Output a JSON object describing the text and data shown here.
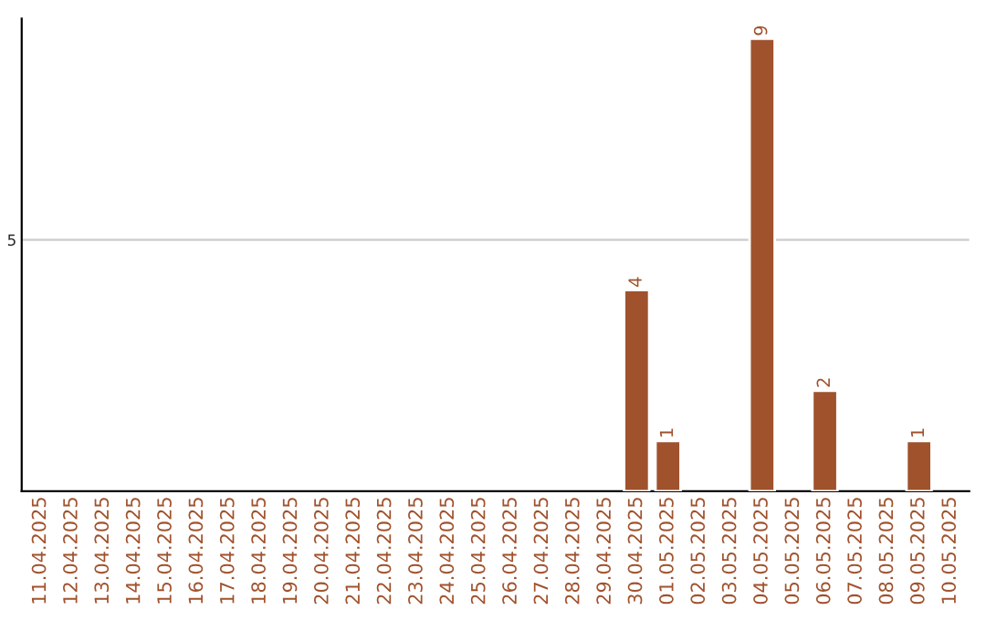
{
  "chart_data": {
    "type": "bar",
    "categories": [
      "11.04.2025",
      "12.04.2025",
      "13.04.2025",
      "14.04.2025",
      "15.04.2025",
      "16.04.2025",
      "17.04.2025",
      "18.04.2025",
      "19.04.2025",
      "20.04.2025",
      "21.04.2025",
      "22.04.2025",
      "23.04.2025",
      "24.04.2025",
      "25.04.2025",
      "26.04.2025",
      "27.04.2025",
      "28.04.2025",
      "29.04.2025",
      "30.04.2025",
      "01.05.2025",
      "02.05.2025",
      "03.05.2025",
      "04.05.2025",
      "05.05.2025",
      "06.05.2025",
      "07.05.2025",
      "08.05.2025",
      "09.05.2025",
      "10.05.2025"
    ],
    "values": [
      null,
      null,
      null,
      null,
      null,
      null,
      null,
      null,
      null,
      null,
      null,
      null,
      null,
      null,
      null,
      null,
      null,
      null,
      null,
      4,
      1,
      null,
      null,
      9,
      null,
      2,
      null,
      null,
      1,
      null
    ],
    "value_labels": [
      null,
      null,
      null,
      null,
      null,
      null,
      null,
      null,
      null,
      null,
      null,
      null,
      null,
      null,
      null,
      null,
      null,
      null,
      null,
      "4",
      "1",
      null,
      null,
      "9",
      null,
      "2",
      null,
      null,
      "1",
      null
    ],
    "color": "#a0522d",
    "ylim": [
      0,
      9.4
    ],
    "yticks": [
      5
    ],
    "grid": "y",
    "legend": false
  }
}
